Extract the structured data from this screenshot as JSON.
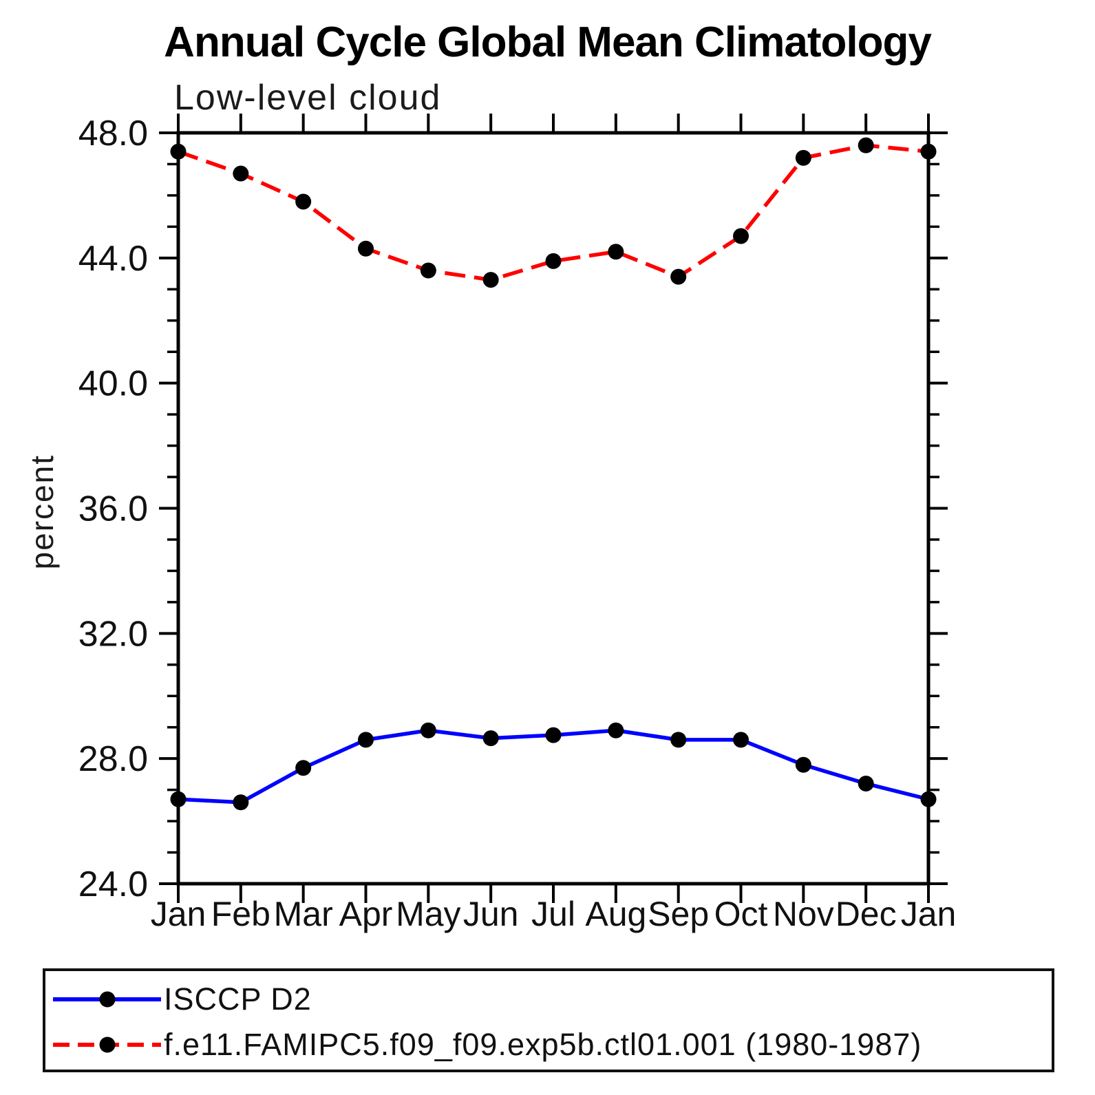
{
  "chart_data": {
    "type": "line",
    "title": "Annual Cycle Global Mean Climatology",
    "subtitle": "Low-level cloud",
    "ylabel": "percent",
    "xlabel": "",
    "ylim": [
      24.0,
      48.0
    ],
    "grid": false,
    "legend_position": "bottom-left-box",
    "ytick_values": [
      48,
      44,
      40,
      36,
      32,
      28,
      24
    ],
    "ytick_labels": [
      "48.0",
      "44.0",
      "40.0",
      "36.0",
      "32.0",
      "28.0",
      "24.0"
    ],
    "yminor_step": 1,
    "categories": [
      "Jan",
      "Feb",
      "Mar",
      "Apr",
      "May",
      "Jun",
      "Jul",
      "Aug",
      "Sep",
      "Oct",
      "Nov",
      "Dec",
      "Jan"
    ],
    "series": [
      {
        "name": "ISCCP D2",
        "color": "#0000ff",
        "line_style": "solid",
        "marker": "filled-circle",
        "marker_color": "#000000",
        "values": [
          26.7,
          26.6,
          27.7,
          28.6,
          28.9,
          28.65,
          28.75,
          28.9,
          28.6,
          28.6,
          27.8,
          27.2,
          26.7
        ]
      },
      {
        "name": "f.e11.FAMIPC5.f09_f09.exp5b.ctl01.001 (1980-1987)",
        "color": "#ff0000",
        "line_style": "dashed",
        "marker": "filled-circle",
        "marker_color": "#000000",
        "values": [
          47.4,
          46.7,
          45.8,
          44.3,
          43.6,
          43.3,
          43.9,
          44.2,
          43.4,
          44.7,
          47.2,
          47.6,
          47.4
        ]
      }
    ]
  }
}
